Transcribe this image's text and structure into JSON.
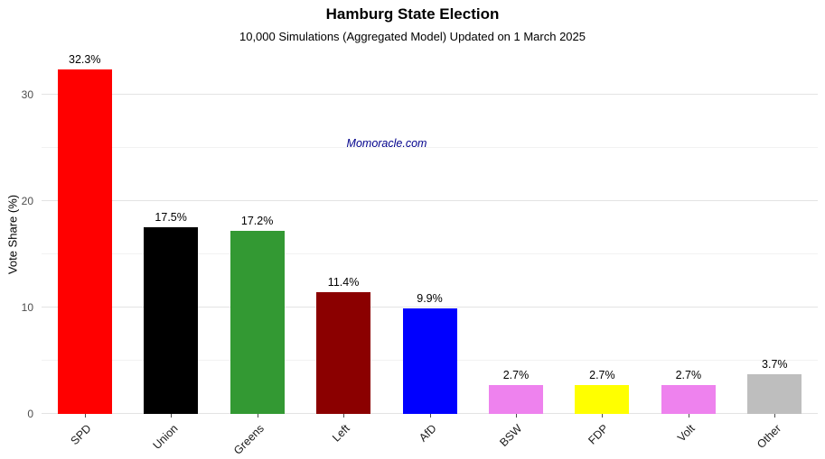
{
  "chart_data": {
    "type": "bar",
    "title": "Hamburg State Election",
    "subtitle": "10,000 Simulations (Aggregated Model) Updated on 1 March 2025",
    "watermark": "Momoracle.com",
    "watermark_color": "#00008B",
    "ylabel": "Vote Share (%)",
    "xlabel": "",
    "categories": [
      "SPD",
      "Union",
      "Greens",
      "Left",
      "AfD",
      "BSW",
      "FDP",
      "Volt",
      "Other"
    ],
    "values": [
      32.3,
      17.5,
      17.2,
      11.4,
      9.9,
      2.7,
      2.7,
      2.7,
      3.7
    ],
    "value_labels": [
      "32.3%",
      "17.5%",
      "17.2%",
      "11.4%",
      "9.9%",
      "2.7%",
      "2.7%",
      "2.7%",
      "3.7%"
    ],
    "bar_colors": [
      "#FF0000",
      "#000000",
      "#339933",
      "#8B0000",
      "#0000FF",
      "#EE82EE",
      "#FFFF00",
      "#EE82EE",
      "#BEBEBE"
    ],
    "ylim": [
      0,
      33.6
    ],
    "yticks": [
      0,
      10,
      20,
      30
    ],
    "yticks_minor": [
      5,
      15,
      25
    ],
    "grid": "horizontal",
    "legend": "none"
  }
}
